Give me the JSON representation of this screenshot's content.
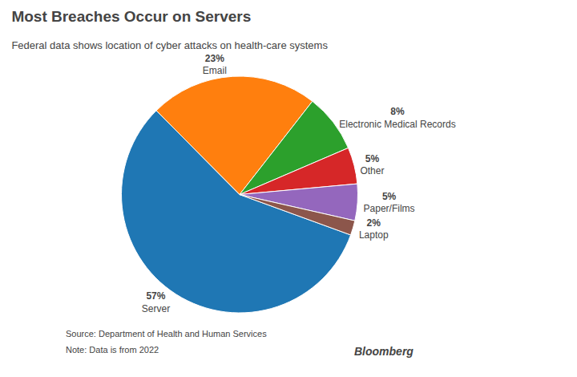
{
  "chart_data": {
    "type": "pie",
    "title": "Most Breaches Occur on Servers",
    "subtitle": "Federal data shows location of cyber attacks on health-care systems",
    "categories": [
      "Server",
      "Email",
      "Electronic Medical Records",
      "Other",
      "Paper/Films",
      "Laptop"
    ],
    "values": [
      57,
      23,
      8,
      5,
      5,
      2
    ],
    "value_labels": [
      "57%",
      "23%",
      "8%",
      "5%",
      "5%",
      "2%"
    ],
    "data_labels": true,
    "annotations": [
      "Source: Department of Health and Human Services",
      "Note: Data is from 2022",
      "Bloomberg"
    ]
  }
}
